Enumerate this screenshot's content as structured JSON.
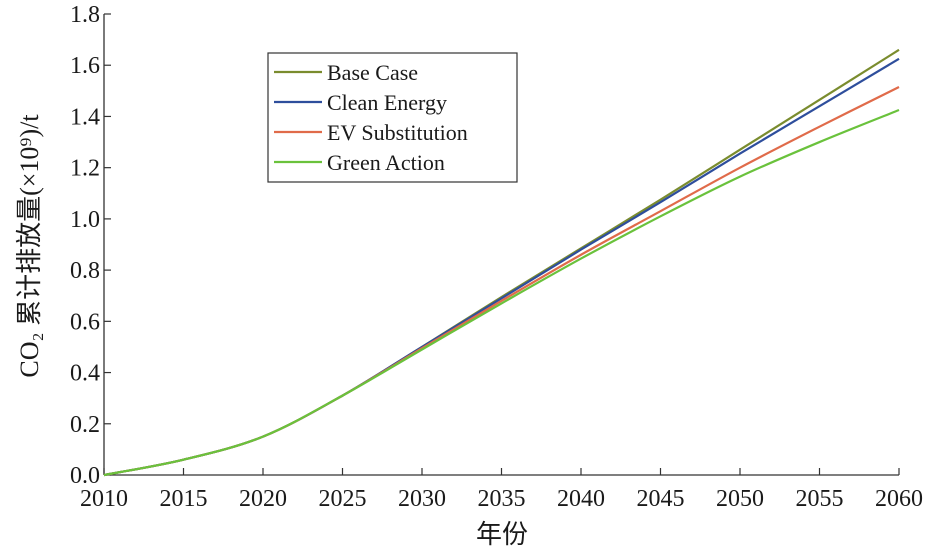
{
  "chart_data": {
    "type": "line",
    "xlabel": "年份",
    "ylabel": "CO₂ 累计排放量(×10⁹)/t",
    "xlim": [
      2010,
      2060
    ],
    "ylim": [
      0,
      1.8
    ],
    "x_ticks": [
      "2010",
      "2015",
      "2020",
      "2025",
      "2030",
      "2035",
      "2040",
      "2045",
      "2050",
      "2055",
      "2060"
    ],
    "y_ticks": [
      "0.0",
      "0.2",
      "0.4",
      "0.6",
      "0.8",
      "1.0",
      "1.2",
      "1.4",
      "1.6",
      "1.8"
    ],
    "grid": false,
    "legend_position": "top-left",
    "x": [
      2010,
      2015,
      2020,
      2025,
      2030,
      2035,
      2040,
      2045,
      2050,
      2055,
      2060
    ],
    "series": [
      {
        "name": "Base Case",
        "color": "#7a8c2e",
        "values": [
          0.0,
          0.06,
          0.15,
          0.31,
          0.5,
          0.695,
          0.885,
          1.075,
          1.27,
          1.465,
          1.66
        ]
      },
      {
        "name": "Clean Energy",
        "color": "#2e4e9c",
        "values": [
          0.0,
          0.06,
          0.15,
          0.31,
          0.5,
          0.69,
          0.88,
          1.065,
          1.255,
          1.44,
          1.625
        ]
      },
      {
        "name": "EV Substitution",
        "color": "#e06b4a",
        "values": [
          0.0,
          0.06,
          0.15,
          0.31,
          0.495,
          0.68,
          0.86,
          1.03,
          1.2,
          1.36,
          1.515
        ]
      },
      {
        "name": "Green Action",
        "color": "#6ac23c",
        "values": [
          0.0,
          0.06,
          0.15,
          0.31,
          0.49,
          0.67,
          0.845,
          1.01,
          1.165,
          1.3,
          1.425
        ]
      }
    ]
  }
}
